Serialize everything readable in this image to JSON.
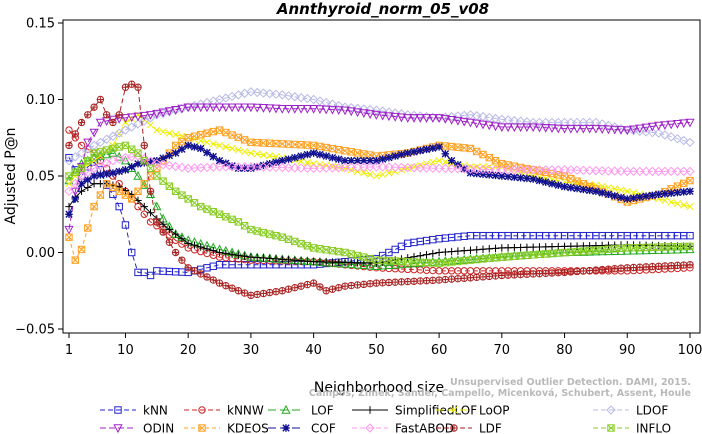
{
  "chart_data": {
    "type": "line",
    "title": "Annthyroid_norm_05_v08",
    "xlabel": "Neighborhood size",
    "ylabel": "Adjusted P@n",
    "xlim": [
      1,
      100
    ],
    "ylim": [
      -0.05,
      0.15
    ],
    "x_ticks": [
      1,
      10,
      20,
      30,
      40,
      50,
      60,
      70,
      80,
      90,
      100
    ],
    "y_ticks": [
      -0.05,
      0.0,
      0.05,
      0.1,
      0.15
    ],
    "y_tick_labels": [
      "−0.05",
      "0.00",
      "0.05",
      "0.10",
      "0.15"
    ],
    "grid": false,
    "legend_position": "bottom",
    "series": [
      {
        "name": "kNN",
        "color": "#2222cc",
        "dash": "5,3",
        "marker": "square",
        "x": [
          1,
          2,
          3,
          4,
          5,
          6,
          7,
          8,
          9,
          10,
          11,
          12,
          13,
          14,
          15,
          20,
          25,
          30,
          40,
          50,
          55,
          60,
          65,
          70,
          80,
          90,
          100
        ],
        "values": [
          0.062,
          0.054,
          0.05,
          0.056,
          0.059,
          0.054,
          0.044,
          0.038,
          0.03,
          0.018,
          0.0,
          -0.013,
          -0.013,
          -0.015,
          -0.012,
          -0.013,
          -0.008,
          -0.008,
          -0.008,
          -0.004,
          0.006,
          0.009,
          0.011,
          0.011,
          0.011,
          0.011,
          0.011
        ]
      },
      {
        "name": "kNNW",
        "color": "#cc2222",
        "dash": "5,3",
        "marker": "circle",
        "x": [
          1,
          2,
          3,
          5,
          8,
          10,
          12,
          14,
          16,
          18,
          20,
          25,
          30,
          40,
          50,
          60,
          70,
          80,
          90,
          100
        ],
        "values": [
          0.08,
          0.075,
          0.07,
          0.065,
          0.05,
          0.04,
          0.03,
          0.02,
          0.015,
          0.008,
          0.003,
          -0.003,
          -0.005,
          -0.006,
          -0.01,
          -0.012,
          -0.012,
          -0.012,
          -0.012,
          -0.01
        ]
      },
      {
        "name": "LOF",
        "color": "#22aa22",
        "dash": "8,4",
        "marker": "triangle-up",
        "x": [
          1,
          3,
          5,
          8,
          10,
          12,
          14,
          16,
          18,
          20,
          25,
          30,
          40,
          50,
          60,
          70,
          80,
          90,
          100
        ],
        "values": [
          0.047,
          0.058,
          0.062,
          0.065,
          0.06,
          0.05,
          0.038,
          0.022,
          0.012,
          0.008,
          0.002,
          -0.003,
          -0.006,
          -0.009,
          -0.006,
          -0.003,
          0.0,
          0.001,
          0.002
        ]
      },
      {
        "name": "SimplifiedLOF",
        "color": "#000000",
        "dash": "",
        "marker": "plus",
        "x": [
          1,
          2,
          3,
          5,
          7,
          9,
          11,
          13,
          15,
          17,
          20,
          25,
          30,
          40,
          50,
          60,
          70,
          80,
          90,
          100
        ],
        "values": [
          0.03,
          0.036,
          0.04,
          0.045,
          0.045,
          0.043,
          0.038,
          0.03,
          0.022,
          0.015,
          0.006,
          0.0,
          -0.003,
          -0.006,
          -0.007,
          0.0,
          0.003,
          0.004,
          0.005,
          0.004
        ]
      },
      {
        "name": "LoOP",
        "color": "#eeee00",
        "dash": "8,4",
        "marker": "x",
        "x": [
          1,
          3,
          5,
          8,
          10,
          12,
          15,
          20,
          25,
          30,
          35,
          40,
          45,
          50,
          55,
          60,
          65,
          70,
          75,
          80,
          85,
          90,
          95,
          100
        ],
        "values": [
          0.045,
          0.055,
          0.06,
          0.07,
          0.085,
          0.09,
          0.08,
          0.075,
          0.07,
          0.065,
          0.062,
          0.058,
          0.055,
          0.05,
          0.055,
          0.06,
          0.056,
          0.056,
          0.05,
          0.046,
          0.044,
          0.04,
          0.035,
          0.03
        ]
      },
      {
        "name": "LDOF",
        "color": "#b9b9e8",
        "dash": "5,3",
        "marker": "diamond",
        "x": [
          1,
          5,
          10,
          15,
          20,
          25,
          30,
          35,
          40,
          45,
          50,
          55,
          60,
          65,
          70,
          75,
          80,
          85,
          90,
          95,
          100
        ],
        "values": [
          0.06,
          0.07,
          0.08,
          0.09,
          0.095,
          0.1,
          0.105,
          0.103,
          0.1,
          0.095,
          0.093,
          0.09,
          0.088,
          0.09,
          0.087,
          0.085,
          0.085,
          0.085,
          0.08,
          0.078,
          0.072
        ]
      },
      {
        "name": "ODIN",
        "color": "#a020c8",
        "dash": "6,3",
        "marker": "triangle-down",
        "x": [
          1,
          2,
          4,
          6,
          8,
          10,
          14,
          20,
          25,
          30,
          35,
          40,
          45,
          50,
          55,
          60,
          65,
          70,
          75,
          80,
          85,
          90,
          95,
          100
        ],
        "values": [
          0.015,
          0.04,
          0.072,
          0.085,
          0.087,
          0.088,
          0.09,
          0.095,
          0.095,
          0.095,
          0.094,
          0.094,
          0.093,
          0.09,
          0.088,
          0.088,
          0.085,
          0.082,
          0.082,
          0.081,
          0.081,
          0.08,
          0.083,
          0.085
        ]
      },
      {
        "name": "KDEOS",
        "color": "#ffa020",
        "dash": "4,3",
        "marker": "boxed-x",
        "x": [
          1,
          2,
          3,
          5,
          7,
          9,
          11,
          13,
          15,
          18,
          20,
          25,
          30,
          40,
          50,
          55,
          60,
          65,
          70,
          80,
          90,
          95,
          100
        ],
        "values": [
          0.01,
          -0.005,
          0.002,
          0.03,
          0.045,
          0.04,
          0.035,
          0.045,
          0.055,
          0.07,
          0.075,
          0.08,
          0.072,
          0.07,
          0.063,
          0.065,
          0.07,
          0.068,
          0.058,
          0.05,
          0.033,
          0.038,
          0.047
        ]
      },
      {
        "name": "COF",
        "color": "#101090",
        "dash": "8,4",
        "marker": "asterisk",
        "x": [
          1,
          3,
          5,
          8,
          10,
          12,
          15,
          18,
          20,
          22,
          25,
          28,
          30,
          35,
          40,
          45,
          50,
          55,
          60,
          62,
          65,
          70,
          75,
          80,
          85,
          90,
          95,
          100
        ],
        "values": [
          0.025,
          0.045,
          0.05,
          0.052,
          0.054,
          0.058,
          0.06,
          0.065,
          0.07,
          0.068,
          0.06,
          0.055,
          0.055,
          0.06,
          0.065,
          0.06,
          0.06,
          0.065,
          0.069,
          0.06,
          0.052,
          0.05,
          0.048,
          0.043,
          0.04,
          0.035,
          0.038,
          0.04
        ]
      },
      {
        "name": "FastABOD",
        "color": "#ff99ee",
        "dash": "5,3",
        "marker": "diamond",
        "x": [
          1,
          3,
          5,
          8,
          10,
          12,
          15,
          20,
          25,
          30,
          40,
          50,
          60,
          70,
          80,
          90,
          100
        ],
        "values": [
          0.04,
          0.05,
          0.055,
          0.06,
          0.062,
          0.063,
          0.058,
          0.055,
          0.056,
          0.056,
          0.055,
          0.056,
          0.055,
          0.054,
          0.054,
          0.053,
          0.053
        ]
      },
      {
        "name": "LDF",
        "color": "#aa2222",
        "dash": "5,3",
        "marker": "circle-plus",
        "x": [
          1,
          3,
          5,
          6,
          7,
          8,
          9,
          10,
          11,
          12,
          13,
          14,
          15,
          18,
          20,
          25,
          28,
          30,
          35,
          40,
          42,
          45,
          50,
          60,
          70,
          80,
          90,
          100
        ],
        "values": [
          0.07,
          0.085,
          0.095,
          0.1,
          0.09,
          0.085,
          0.09,
          0.108,
          0.11,
          0.108,
          0.07,
          0.04,
          0.02,
          0.0,
          -0.01,
          -0.02,
          -0.025,
          -0.028,
          -0.025,
          -0.02,
          -0.025,
          -0.022,
          -0.02,
          -0.018,
          -0.015,
          -0.013,
          -0.01,
          -0.008
        ]
      },
      {
        "name": "INFLO",
        "color": "#88cc22",
        "dash": "5,3",
        "marker": "boxed-x",
        "x": [
          1,
          3,
          5,
          8,
          10,
          12,
          15,
          18,
          20,
          22,
          25,
          28,
          30,
          35,
          40,
          45,
          50,
          60,
          70,
          80,
          90,
          100
        ],
        "values": [
          0.05,
          0.055,
          0.065,
          0.068,
          0.07,
          0.065,
          0.05,
          0.04,
          0.035,
          0.03,
          0.025,
          0.02,
          0.015,
          0.01,
          0.003,
          0.0,
          -0.005,
          -0.007,
          -0.003,
          0.0,
          0.003,
          0.004
        ]
      }
    ],
    "watermark": [
      "Campos, Zimek, Sander, Campello, Micenková, Schubert, Assent, Houle",
      "Unsupervised Outlier Detection. DAMI, 2015."
    ]
  }
}
